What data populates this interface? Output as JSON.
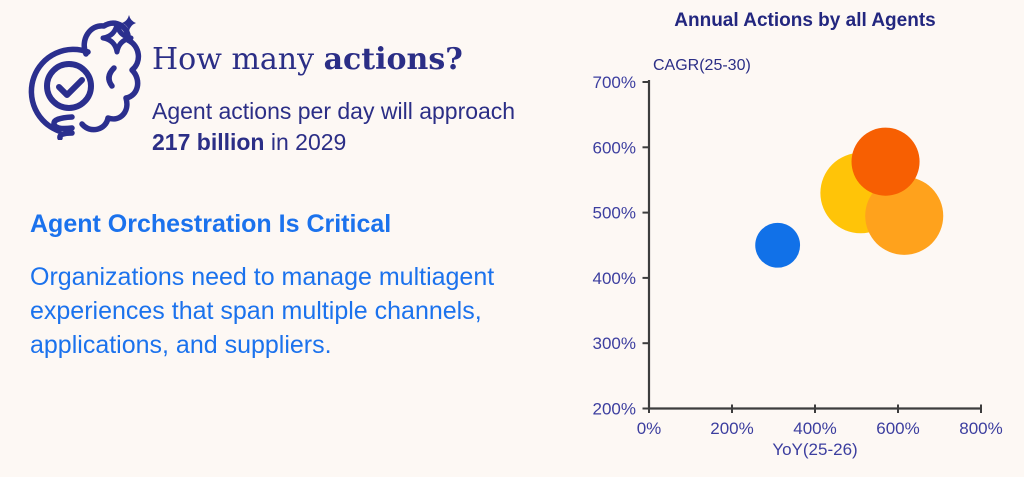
{
  "page": {
    "background": "#FDF8F4"
  },
  "left": {
    "icon": "brain-lightbulb-check-sparkle-icon",
    "title_regular": "How many ",
    "title_bold": "actions?",
    "subtitle_line1": "Agent actions per day will approach",
    "subtitle_line2_bold": "217 billion",
    "subtitle_line2_rest": " in 2029",
    "headline": "Agent Orchestration Is Critical",
    "body_lines": [
      "Organizations need to manage multiagent",
      "experiences that span multiple channels,",
      "applications, and suppliers."
    ],
    "navy_color": "#2B2E86",
    "blue_color": "#1B72ED"
  },
  "chart_data": {
    "type": "bubble",
    "title": "Annual Actions by all Agents",
    "xlabel": "YoY(25-26)",
    "ylabel": "CAGR(25-30)",
    "xlim": [
      0,
      800
    ],
    "ylim": [
      200,
      700
    ],
    "xticks": [
      0,
      200,
      400,
      600,
      800
    ],
    "yticks": [
      200,
      300,
      400,
      500,
      600,
      700
    ],
    "tick_suffix": "%",
    "grid": false,
    "legend": "none",
    "series": [
      {
        "name": "blue-agent-bubble",
        "x": 310,
        "y": 450,
        "r": 54,
        "color": "#1171E8"
      },
      {
        "name": "yellow-agent-bubble",
        "x": 510,
        "y": 530,
        "r": 97,
        "color": "#FFC408"
      },
      {
        "name": "orange-agent-bubble",
        "x": 615,
        "y": 495,
        "r": 94,
        "color": "#FFA21C"
      },
      {
        "name": "darkorange-agent-bubble",
        "x": 570,
        "y": 578,
        "r": 82,
        "color": "#F75F02"
      }
    ],
    "axis_color": "#3D3D3D",
    "tick_label_color": "#3C3E9F",
    "title_color": "#23277F",
    "axis_label_color": "#2B2E86"
  }
}
